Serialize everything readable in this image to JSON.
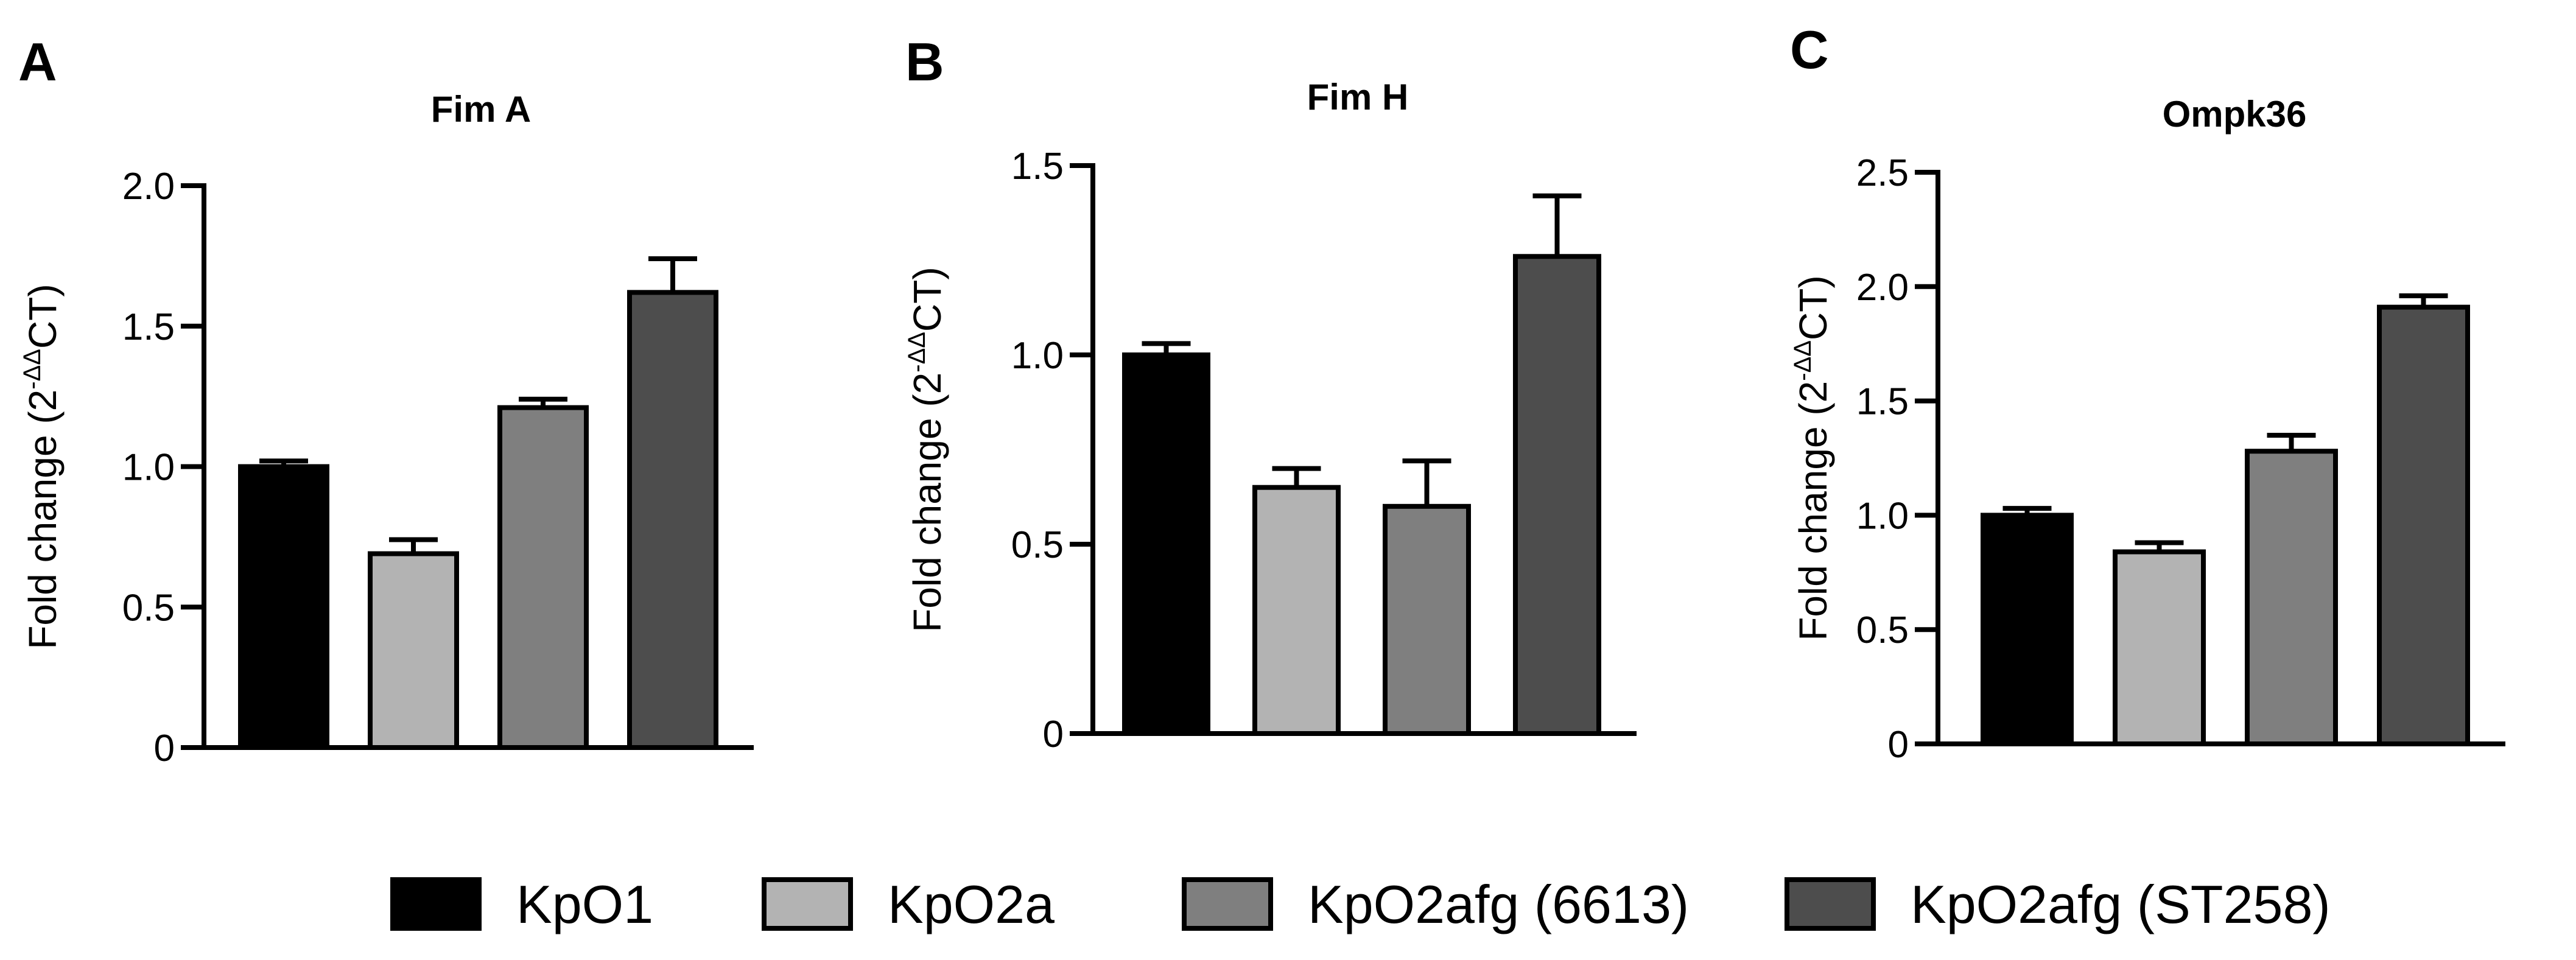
{
  "chart_data": [
    {
      "type": "bar",
      "panel_label": "A",
      "title": "Fim A",
      "ylabel": {
        "text": "Fold change (2",
        "superscript": "-ΔΔ",
        "suffix": "CT)"
      },
      "ylim": [
        0,
        2.0
      ],
      "yticks": [
        "0",
        "0.5",
        "1.0",
        "1.5",
        "2.0"
      ],
      "categories": [
        "KpO1",
        "KpO2a",
        "KpO2afg (6613)",
        "KpO2afg (ST258)"
      ],
      "values": [
        1.0,
        0.69,
        1.21,
        1.62
      ],
      "errors": [
        0.02,
        0.05,
        0.03,
        0.12
      ],
      "grid": false
    },
    {
      "type": "bar",
      "panel_label": "B",
      "title": "Fim H",
      "ylabel": {
        "text": "Fold change (2",
        "superscript": "-ΔΔ",
        "suffix": "CT)"
      },
      "ylim": [
        0,
        1.5
      ],
      "yticks": [
        "0",
        "0.5",
        "1.0",
        "1.5"
      ],
      "categories": [
        "KpO1",
        "KpO2a",
        "KpO2afg (6613)",
        "KpO2afg (ST258)"
      ],
      "values": [
        1.0,
        0.65,
        0.6,
        1.26
      ],
      "errors": [
        0.03,
        0.05,
        0.12,
        0.16
      ],
      "grid": false
    },
    {
      "type": "bar",
      "panel_label": "C",
      "title": "Ompk36",
      "ylabel": {
        "text": "Fold change (2",
        "superscript": "-ΔΔ",
        "suffix": "CT)"
      },
      "ylim": [
        0,
        2.5
      ],
      "yticks": [
        "0",
        "0.5",
        "1.0",
        "1.5",
        "2.0",
        "2.5"
      ],
      "categories": [
        "KpO1",
        "KpO2a",
        "KpO2afg (6613)",
        "KpO2afg (ST258)"
      ],
      "values": [
        1.0,
        0.84,
        1.28,
        1.91
      ],
      "errors": [
        0.03,
        0.04,
        0.07,
        0.05
      ],
      "grid": false
    }
  ],
  "legend": {
    "placement": "bottom",
    "items": [
      {
        "label": "KpO1",
        "color": "#000000"
      },
      {
        "label": "KpO2a",
        "color": "#b3b3b3"
      },
      {
        "label": "KpO2afg (6613)",
        "color": "#7f7f7f"
      },
      {
        "label": "KpO2afg (ST258)",
        "color": "#4d4d4d"
      }
    ]
  }
}
